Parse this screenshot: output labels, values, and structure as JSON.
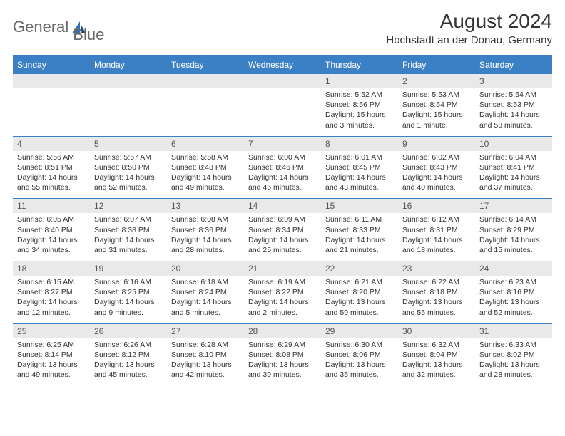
{
  "logo": {
    "text1": "General",
    "text2": "Blue"
  },
  "header": {
    "title": "August 2024",
    "location": "Hochstadt an der Donau, Germany"
  },
  "colors": {
    "header_bg": "#3b7fc4",
    "header_text": "#ffffff",
    "numrow_bg": "#e9e9e9",
    "divider": "#3b7fc4",
    "logo_gray": "#6a6a6a",
    "logo_blue": "#2f6fb3"
  },
  "dayNames": [
    "Sunday",
    "Monday",
    "Tuesday",
    "Wednesday",
    "Thursday",
    "Friday",
    "Saturday"
  ],
  "weeks": [
    [
      {
        "n": "",
        "sunrise": "",
        "sunset": "",
        "daylight": ""
      },
      {
        "n": "",
        "sunrise": "",
        "sunset": "",
        "daylight": ""
      },
      {
        "n": "",
        "sunrise": "",
        "sunset": "",
        "daylight": ""
      },
      {
        "n": "",
        "sunrise": "",
        "sunset": "",
        "daylight": ""
      },
      {
        "n": "1",
        "sunrise": "Sunrise: 5:52 AM",
        "sunset": "Sunset: 8:56 PM",
        "daylight": "Daylight: 15 hours and 3 minutes."
      },
      {
        "n": "2",
        "sunrise": "Sunrise: 5:53 AM",
        "sunset": "Sunset: 8:54 PM",
        "daylight": "Daylight: 15 hours and 1 minute."
      },
      {
        "n": "3",
        "sunrise": "Sunrise: 5:54 AM",
        "sunset": "Sunset: 8:53 PM",
        "daylight": "Daylight: 14 hours and 58 minutes."
      }
    ],
    [
      {
        "n": "4",
        "sunrise": "Sunrise: 5:56 AM",
        "sunset": "Sunset: 8:51 PM",
        "daylight": "Daylight: 14 hours and 55 minutes."
      },
      {
        "n": "5",
        "sunrise": "Sunrise: 5:57 AM",
        "sunset": "Sunset: 8:50 PM",
        "daylight": "Daylight: 14 hours and 52 minutes."
      },
      {
        "n": "6",
        "sunrise": "Sunrise: 5:58 AM",
        "sunset": "Sunset: 8:48 PM",
        "daylight": "Daylight: 14 hours and 49 minutes."
      },
      {
        "n": "7",
        "sunrise": "Sunrise: 6:00 AM",
        "sunset": "Sunset: 8:46 PM",
        "daylight": "Daylight: 14 hours and 46 minutes."
      },
      {
        "n": "8",
        "sunrise": "Sunrise: 6:01 AM",
        "sunset": "Sunset: 8:45 PM",
        "daylight": "Daylight: 14 hours and 43 minutes."
      },
      {
        "n": "9",
        "sunrise": "Sunrise: 6:02 AM",
        "sunset": "Sunset: 8:43 PM",
        "daylight": "Daylight: 14 hours and 40 minutes."
      },
      {
        "n": "10",
        "sunrise": "Sunrise: 6:04 AM",
        "sunset": "Sunset: 8:41 PM",
        "daylight": "Daylight: 14 hours and 37 minutes."
      }
    ],
    [
      {
        "n": "11",
        "sunrise": "Sunrise: 6:05 AM",
        "sunset": "Sunset: 8:40 PM",
        "daylight": "Daylight: 14 hours and 34 minutes."
      },
      {
        "n": "12",
        "sunrise": "Sunrise: 6:07 AM",
        "sunset": "Sunset: 8:38 PM",
        "daylight": "Daylight: 14 hours and 31 minutes."
      },
      {
        "n": "13",
        "sunrise": "Sunrise: 6:08 AM",
        "sunset": "Sunset: 8:36 PM",
        "daylight": "Daylight: 14 hours and 28 minutes."
      },
      {
        "n": "14",
        "sunrise": "Sunrise: 6:09 AM",
        "sunset": "Sunset: 8:34 PM",
        "daylight": "Daylight: 14 hours and 25 minutes."
      },
      {
        "n": "15",
        "sunrise": "Sunrise: 6:11 AM",
        "sunset": "Sunset: 8:33 PM",
        "daylight": "Daylight: 14 hours and 21 minutes."
      },
      {
        "n": "16",
        "sunrise": "Sunrise: 6:12 AM",
        "sunset": "Sunset: 8:31 PM",
        "daylight": "Daylight: 14 hours and 18 minutes."
      },
      {
        "n": "17",
        "sunrise": "Sunrise: 6:14 AM",
        "sunset": "Sunset: 8:29 PM",
        "daylight": "Daylight: 14 hours and 15 minutes."
      }
    ],
    [
      {
        "n": "18",
        "sunrise": "Sunrise: 6:15 AM",
        "sunset": "Sunset: 8:27 PM",
        "daylight": "Daylight: 14 hours and 12 minutes."
      },
      {
        "n": "19",
        "sunrise": "Sunrise: 6:16 AM",
        "sunset": "Sunset: 8:25 PM",
        "daylight": "Daylight: 14 hours and 9 minutes."
      },
      {
        "n": "20",
        "sunrise": "Sunrise: 6:18 AM",
        "sunset": "Sunset: 8:24 PM",
        "daylight": "Daylight: 14 hours and 5 minutes."
      },
      {
        "n": "21",
        "sunrise": "Sunrise: 6:19 AM",
        "sunset": "Sunset: 8:22 PM",
        "daylight": "Daylight: 14 hours and 2 minutes."
      },
      {
        "n": "22",
        "sunrise": "Sunrise: 6:21 AM",
        "sunset": "Sunset: 8:20 PM",
        "daylight": "Daylight: 13 hours and 59 minutes."
      },
      {
        "n": "23",
        "sunrise": "Sunrise: 6:22 AM",
        "sunset": "Sunset: 8:18 PM",
        "daylight": "Daylight: 13 hours and 55 minutes."
      },
      {
        "n": "24",
        "sunrise": "Sunrise: 6:23 AM",
        "sunset": "Sunset: 8:16 PM",
        "daylight": "Daylight: 13 hours and 52 minutes."
      }
    ],
    [
      {
        "n": "25",
        "sunrise": "Sunrise: 6:25 AM",
        "sunset": "Sunset: 8:14 PM",
        "daylight": "Daylight: 13 hours and 49 minutes."
      },
      {
        "n": "26",
        "sunrise": "Sunrise: 6:26 AM",
        "sunset": "Sunset: 8:12 PM",
        "daylight": "Daylight: 13 hours and 45 minutes."
      },
      {
        "n": "27",
        "sunrise": "Sunrise: 6:28 AM",
        "sunset": "Sunset: 8:10 PM",
        "daylight": "Daylight: 13 hours and 42 minutes."
      },
      {
        "n": "28",
        "sunrise": "Sunrise: 6:29 AM",
        "sunset": "Sunset: 8:08 PM",
        "daylight": "Daylight: 13 hours and 39 minutes."
      },
      {
        "n": "29",
        "sunrise": "Sunrise: 6:30 AM",
        "sunset": "Sunset: 8:06 PM",
        "daylight": "Daylight: 13 hours and 35 minutes."
      },
      {
        "n": "30",
        "sunrise": "Sunrise: 6:32 AM",
        "sunset": "Sunset: 8:04 PM",
        "daylight": "Daylight: 13 hours and 32 minutes."
      },
      {
        "n": "31",
        "sunrise": "Sunrise: 6:33 AM",
        "sunset": "Sunset: 8:02 PM",
        "daylight": "Daylight: 13 hours and 28 minutes."
      }
    ]
  ]
}
